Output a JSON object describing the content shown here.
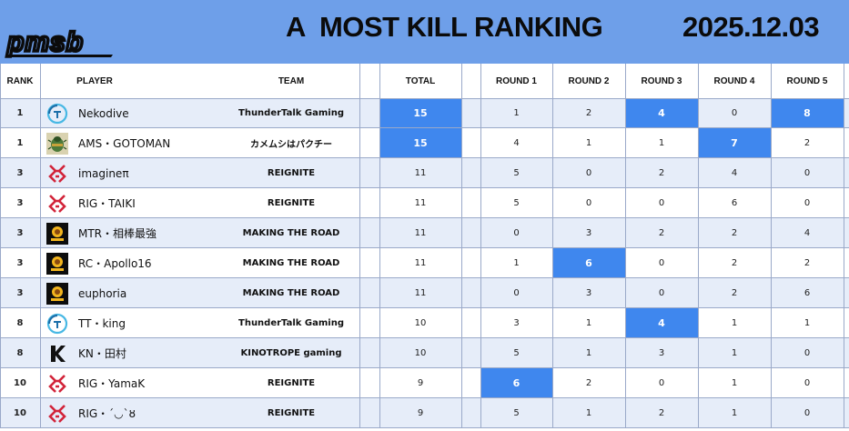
{
  "header": {
    "logo_text": "pmsb",
    "title": "A  MOST KILL RANKING",
    "date": "2025.12.03"
  },
  "columns": {
    "rank": "RANK",
    "player": "PLAYER",
    "team": "TEAM",
    "total": "TOTAL",
    "rounds": [
      "ROUND 1",
      "ROUND 2",
      "ROUND 3",
      "ROUND 4",
      "ROUND 5"
    ]
  },
  "colors": {
    "header_bg": "#6e9fe9",
    "highlight": "#3f87ee",
    "alt_row": "#e6edf9"
  },
  "rows": [
    {
      "rank": "1",
      "player": "Nekodive",
      "team": "ThunderTalk Gaming",
      "icon": "thundertalk-logo-icon",
      "total": "15",
      "total_hl": true,
      "rounds": [
        "1",
        "2",
        "4",
        "0",
        "8"
      ],
      "hl": [
        false,
        false,
        true,
        false,
        true
      ]
    },
    {
      "rank": "1",
      "player": "AMS・GOTOMAN",
      "team": "カメムシはパクチー",
      "icon": "kamemushi-logo-icon",
      "total": "15",
      "total_hl": true,
      "rounds": [
        "4",
        "1",
        "1",
        "7",
        "2"
      ],
      "hl": [
        false,
        false,
        false,
        true,
        false
      ]
    },
    {
      "rank": "3",
      "player": "imagineπ",
      "team": "REIGNITE",
      "icon": "reignite-logo-icon",
      "total": "11",
      "total_hl": false,
      "rounds": [
        "5",
        "0",
        "2",
        "4",
        "0"
      ],
      "hl": [
        false,
        false,
        false,
        false,
        false
      ]
    },
    {
      "rank": "3",
      "player": "RIG・TAIKI",
      "team": "REIGNITE",
      "icon": "reignite-logo-icon",
      "total": "11",
      "total_hl": false,
      "rounds": [
        "5",
        "0",
        "0",
        "6",
        "0"
      ],
      "hl": [
        false,
        false,
        false,
        false,
        false
      ]
    },
    {
      "rank": "3",
      "player": "MTR・相棒最強",
      "team": "MAKING THE ROAD",
      "icon": "making-the-road-logo-icon",
      "total": "11",
      "total_hl": false,
      "rounds": [
        "0",
        "3",
        "2",
        "2",
        "4"
      ],
      "hl": [
        false,
        false,
        false,
        false,
        false
      ]
    },
    {
      "rank": "3",
      "player": " RC・Apollo16",
      "team": "MAKING THE ROAD",
      "icon": "making-the-road-logo-icon",
      "total": "11",
      "total_hl": false,
      "rounds": [
        "1",
        "6",
        "0",
        "2",
        "2"
      ],
      "hl": [
        false,
        true,
        false,
        false,
        false
      ]
    },
    {
      "rank": "3",
      "player": "euphoria",
      "team": "MAKING THE ROAD",
      "icon": "making-the-road-logo-icon",
      "total": "11",
      "total_hl": false,
      "rounds": [
        "0",
        "3",
        "0",
        "2",
        "6"
      ],
      "hl": [
        false,
        false,
        false,
        false,
        false
      ]
    },
    {
      "rank": "8",
      "player": "TT・king",
      "team": "ThunderTalk Gaming",
      "icon": "thundertalk-logo-icon",
      "total": "10",
      "total_hl": false,
      "rounds": [
        "3",
        "1",
        "4",
        "1",
        "1"
      ],
      "hl": [
        false,
        false,
        true,
        false,
        false
      ]
    },
    {
      "rank": "8",
      "player": "KN・田村",
      "team": "KINOTROPE gaming",
      "icon": "kinotrope-logo-icon",
      "total": "10",
      "total_hl": false,
      "rounds": [
        "5",
        "1",
        "3",
        "1",
        "0"
      ],
      "hl": [
        false,
        false,
        false,
        false,
        false
      ]
    },
    {
      "rank": "10",
      "player": "RIG・YamaK",
      "team": "REIGNITE",
      "icon": "reignite-logo-icon",
      "total": "9",
      "total_hl": false,
      "rounds": [
        "6",
        "2",
        "0",
        "1",
        "0"
      ],
      "hl": [
        true,
        false,
        false,
        false,
        false
      ]
    },
    {
      "rank": "10",
      "player": "RIG・´◡`ȣ",
      "team": "REIGNITE",
      "icon": "reignite-logo-icon",
      "total": "9",
      "total_hl": false,
      "rounds": [
        "5",
        "1",
        "2",
        "1",
        "0"
      ],
      "hl": [
        false,
        false,
        false,
        false,
        false
      ]
    }
  ]
}
